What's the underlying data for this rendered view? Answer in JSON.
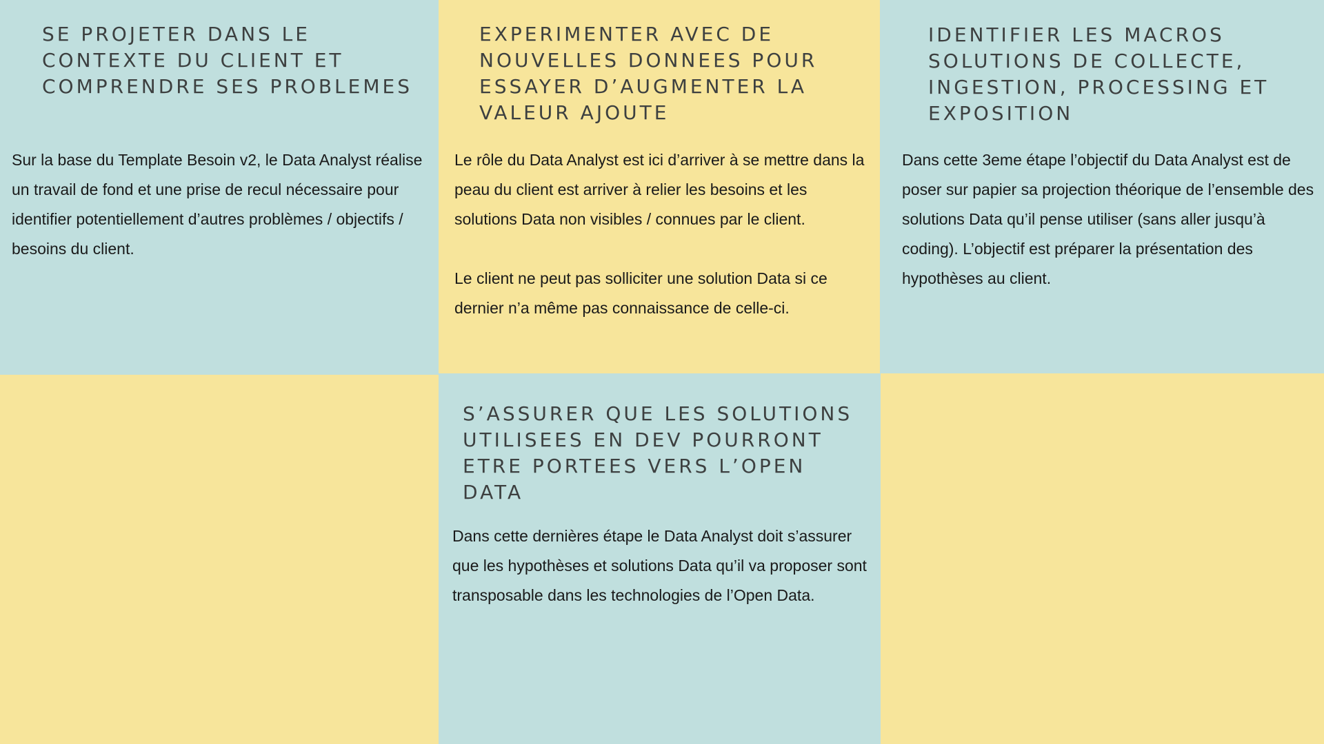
{
  "colors": {
    "teal": "#c0dfde",
    "yellow": "#f7e59b",
    "title_text": "#3d4040",
    "body_text": "#1a1a1a"
  },
  "cards": {
    "c1": {
      "title": "SE PROJETER DANS LE\nCONTEXTE DU CLIENT ET\nCOMPRENDRE SES PROBLEMES",
      "paragraphs": [
        "Sur la base du Template Besoin v2, le Data Analyst réalise un travail de fond et une prise de recul nécessaire pour identifier potentiellement d’autres problèmes / objectifs / besoins du client."
      ]
    },
    "c2": {
      "title": "EXPERIMENTER AVEC DE\nNOUVELLES DONNEES POUR\nESSAYER D’AUGMENTER LA\nVALEUR AJOUTE",
      "paragraphs": [
        "Le rôle du Data Analyst est ici d’arriver à se mettre dans la peau du client est arriver à relier les besoins et les solutions Data non visibles / connues par le client.",
        "Le client ne peut pas solliciter une solution Data si ce dernier n’a même pas connaissance de celle-ci."
      ]
    },
    "c3": {
      "title": "IDENTIFIER LES MACROS\nSOLUTIONS DE COLLECTE,\nINGESTION, PROCESSING ET\nEXPOSITION",
      "paragraphs": [
        "Dans cette 3eme étape l’objectif du Data Analyst est de poser sur papier sa projection théorique de l’ensemble des solutions Data qu’il pense utiliser (sans aller jusqu’à coding). L’objectif est préparer la présentation des hypothèses au client."
      ]
    },
    "c5": {
      "title": "S’ASSURER QUE LES SOLUTIONS\nUTILISEES EN DEV POURRONT\nETRE PORTEES VERS L’OPEN DATA",
      "paragraphs": [
        "Dans cette dernières étape le Data Analyst doit s’assurer que les hypothèses et solutions Data qu’il va proposer sont transposable dans les technologies de l’Open Data."
      ]
    }
  }
}
